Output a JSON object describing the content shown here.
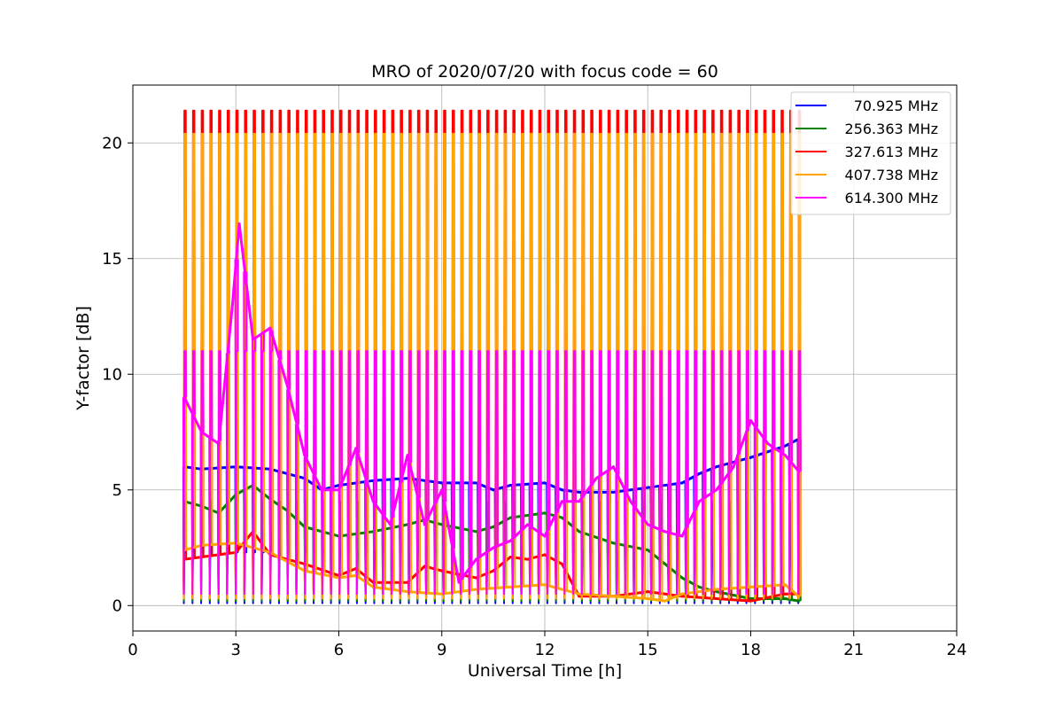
{
  "chart_data": {
    "type": "line",
    "title": "MRO of 2020/07/20 with focus code = 60",
    "xlabel": "Universal Time [h]",
    "ylabel": "Y-factor [dB]",
    "xlim": [
      0,
      24
    ],
    "ylim": [
      -1.1,
      22.5
    ],
    "x_ticks": [
      0,
      3,
      6,
      9,
      12,
      15,
      18,
      21,
      24
    ],
    "y_ticks": [
      0,
      5,
      10,
      15,
      20
    ],
    "grid": true,
    "legend_position": "top-right",
    "calibration_pulses": {
      "x_start": 1.5,
      "x_end": 19.4,
      "count": 72
    },
    "series": [
      {
        "name": "70.925 MHz",
        "color": "#0000ff",
        "x": [
          1.5,
          2,
          3,
          4,
          5,
          5.5,
          6,
          7,
          8,
          9,
          10,
          10.5,
          11,
          12,
          12.5,
          13,
          14,
          15,
          16,
          16.5,
          17,
          18,
          19,
          19.4
        ],
        "values": [
          6.0,
          5.9,
          6.0,
          5.9,
          5.5,
          5.0,
          5.2,
          5.4,
          5.5,
          5.3,
          5.3,
          5.0,
          5.2,
          5.3,
          5.0,
          4.9,
          4.9,
          5.1,
          5.3,
          5.7,
          6.0,
          6.4,
          6.9,
          7.2
        ],
        "pulse_low": 0.1,
        "pulse_high": 2.3
      },
      {
        "name": "256.363 MHz",
        "color": "#008000",
        "x": [
          1.5,
          2,
          2.5,
          3,
          3.5,
          4,
          4.5,
          5,
          6,
          7,
          8,
          8.5,
          9,
          10,
          10.5,
          11,
          12,
          12.5,
          13,
          14,
          15,
          15.5,
          16,
          16.5,
          17,
          18,
          19,
          19.4
        ],
        "values": [
          4.5,
          4.3,
          4.0,
          4.8,
          5.2,
          4.6,
          4.1,
          3.4,
          3.0,
          3.2,
          3.5,
          3.7,
          3.5,
          3.2,
          3.4,
          3.8,
          4.0,
          3.8,
          3.2,
          2.7,
          2.4,
          1.8,
          1.2,
          0.8,
          0.6,
          0.3,
          0.3,
          0.2
        ],
        "pulse_low": 0.2,
        "pulse_high": 4.5
      },
      {
        "name": "327.613 MHz",
        "color": "#ff0000",
        "x": [
          1.5,
          2,
          3,
          3.5,
          4,
          5,
          6,
          6.5,
          7,
          8,
          8.5,
          9,
          10,
          10.5,
          11,
          11.5,
          12,
          12.5,
          13,
          14,
          15,
          16,
          17,
          18,
          19,
          19.4
        ],
        "values": [
          2.0,
          2.1,
          2.3,
          3.2,
          2.2,
          1.8,
          1.3,
          1.6,
          1.0,
          1.0,
          1.7,
          1.5,
          1.2,
          1.5,
          2.1,
          2.0,
          2.2,
          1.8,
          0.4,
          0.4,
          0.6,
          0.4,
          0.3,
          0.2,
          0.5,
          0.5
        ],
        "pulse_low": 0.3,
        "pulse_high": 21.4
      },
      {
        "name": "407.738 MHz",
        "color": "#ffa500",
        "x": [
          1.5,
          2,
          3,
          4,
          5,
          6,
          6.5,
          7,
          8,
          9,
          10,
          11,
          12,
          13,
          14,
          15,
          15.5,
          16,
          17,
          18,
          19,
          19.4
        ],
        "values": [
          2.4,
          2.6,
          2.7,
          2.3,
          1.5,
          1.2,
          1.3,
          0.8,
          0.6,
          0.5,
          0.7,
          0.8,
          0.9,
          0.5,
          0.4,
          0.3,
          0.2,
          0.5,
          0.7,
          0.8,
          0.9,
          0.4
        ],
        "pulse_low": 0.3,
        "pulse_high": 20.4
      },
      {
        "name": "614.300 MHz",
        "color": "#ff00ff",
        "x": [
          1.5,
          2,
          2.5,
          2.9,
          3.1,
          3.5,
          4,
          4.5,
          5,
          5.5,
          6,
          6.5,
          7,
          7.5,
          8,
          8.5,
          9,
          9.5,
          10,
          10.5,
          11,
          11.5,
          12,
          12.5,
          13,
          13.5,
          14,
          14.5,
          15,
          15.5,
          16,
          16.5,
          17,
          17.5,
          18,
          18.5,
          19,
          19.4
        ],
        "values": [
          9.0,
          7.5,
          7.0,
          13.0,
          16.5,
          11.5,
          12.0,
          9.5,
          6.5,
          5.0,
          5.0,
          6.8,
          4.5,
          3.5,
          6.5,
          3.5,
          5.0,
          1.0,
          2.0,
          2.5,
          2.8,
          3.5,
          3.0,
          4.5,
          4.5,
          5.5,
          6.0,
          4.5,
          3.5,
          3.2,
          3.0,
          4.5,
          5.0,
          6.0,
          8.0,
          7.0,
          6.5,
          5.8
        ],
        "pulse_low": 0.5,
        "pulse_high": 11.0
      }
    ]
  }
}
